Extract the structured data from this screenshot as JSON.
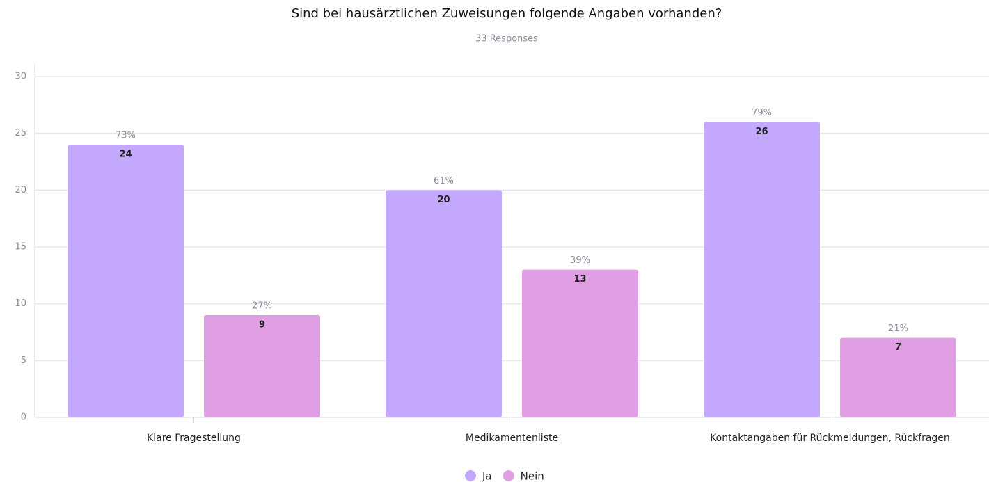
{
  "chart_data": {
    "type": "bar",
    "title": "Sind bei hausärztlichen Zuweisungen folgende Angaben vorhanden?",
    "subtitle": "33 Responses",
    "categories": [
      "Klare Fragestellung",
      "Medikamentenliste",
      "Kontaktangaben für Rückmeldungen, Rückfragen"
    ],
    "series": [
      {
        "name": "Ja",
        "color": "#c4a8fd",
        "values": [
          24,
          20,
          26
        ],
        "percent_labels": [
          "73%",
          "61%",
          "79%"
        ]
      },
      {
        "name": "Nein",
        "color": "#e09fe2",
        "values": [
          9,
          13,
          7
        ],
        "percent_labels": [
          "27%",
          "39%",
          "21%"
        ]
      }
    ],
    "ylim": [
      0,
      30
    ],
    "yticks": [
      0,
      5,
      10,
      15,
      20,
      25,
      30
    ],
    "grid": true,
    "legend": "bottom"
  }
}
